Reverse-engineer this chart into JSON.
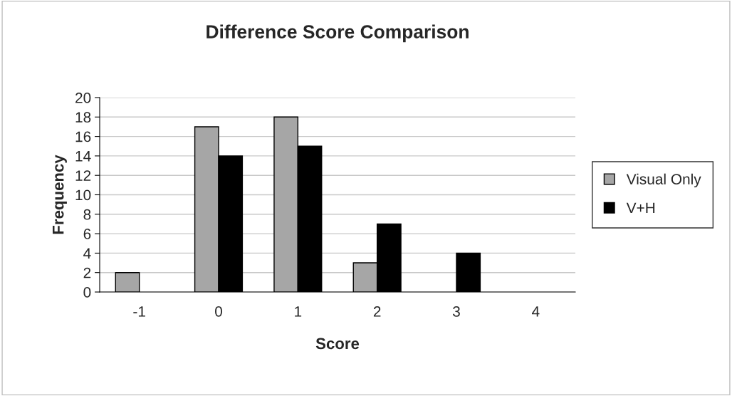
{
  "chart_data": {
    "type": "bar",
    "title": "Difference Score Comparison",
    "xlabel": "Score",
    "ylabel": "Frequency",
    "categories": [
      "-1",
      "0",
      "1",
      "2",
      "3",
      "4"
    ],
    "series": [
      {
        "name": "Visual Only",
        "color": "#a6a6a6",
        "values": [
          2,
          17,
          18,
          3,
          null,
          null
        ]
      },
      {
        "name": "V+H",
        "color": "#000000",
        "values": [
          null,
          14,
          15,
          7,
          4,
          null
        ]
      }
    ],
    "ylim": [
      0,
      20
    ],
    "yticks": [
      0,
      2,
      4,
      6,
      8,
      10,
      12,
      14,
      16,
      18,
      20
    ],
    "grid": "y",
    "legend": "right"
  }
}
